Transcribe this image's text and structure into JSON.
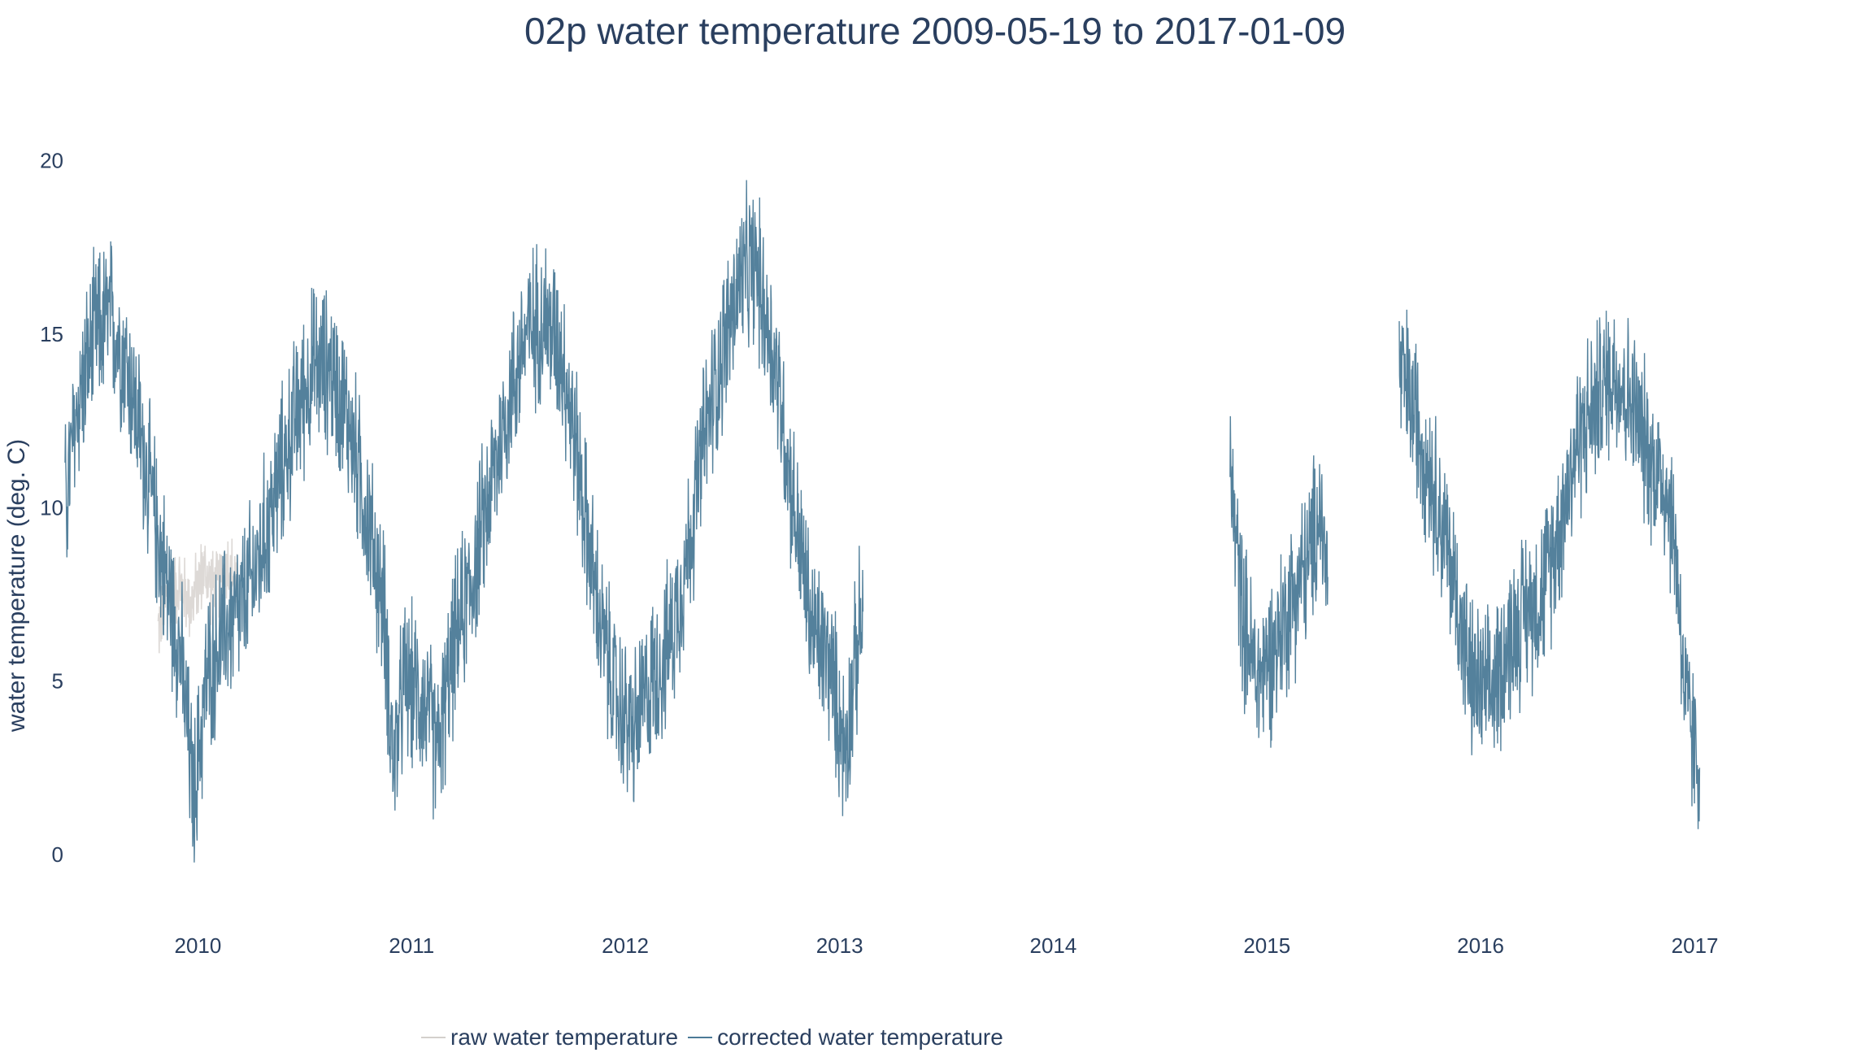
{
  "chart_data": {
    "type": "line",
    "title": "02p water temperature 2009-05-19 to 2017-01-09",
    "xlabel": "",
    "ylabel": "water temperature (deg. C)",
    "x_range": [
      "2009-05-19",
      "2017-07-15"
    ],
    "ylim": [
      -0.8,
      21.0
    ],
    "x_ticks": [
      "2010",
      "2011",
      "2012",
      "2013",
      "2014",
      "2015",
      "2016",
      "2017"
    ],
    "y_ticks": [
      0,
      5,
      10,
      15,
      20
    ],
    "grid": false,
    "legend_position": "bottom",
    "series": [
      {
        "name": "raw water temperature",
        "color": "#d4d0cc",
        "segments": [
          [
            [
              "2009-10-25",
              6.5
            ],
            [
              "2009-11-10",
              7.5
            ],
            [
              "2009-12-01",
              7.8
            ],
            [
              "2009-12-20",
              7.2
            ],
            [
              "2010-01-10",
              8.2
            ],
            [
              "2010-02-01",
              7.6
            ],
            [
              "2010-02-20",
              8.4
            ],
            [
              "2010-03-10",
              7.8
            ]
          ]
        ]
      },
      {
        "name": "corrected water temperature",
        "color": "#4b7a97",
        "segments": [
          [
            [
              "2009-05-19",
              10.0
            ],
            [
              "2009-06-10",
              13.0
            ],
            [
              "2009-07-10",
              15.0
            ],
            [
              "2009-08-05",
              15.5
            ],
            [
              "2009-09-01",
              14.2
            ],
            [
              "2009-10-01",
              11.5
            ],
            [
              "2009-11-01",
              8.5
            ],
            [
              "2009-12-01",
              6.0
            ],
            [
              "2009-12-25",
              1.5
            ],
            [
              "2010-01-15",
              5.0
            ],
            [
              "2010-02-15",
              6.5
            ],
            [
              "2010-03-15",
              7.0
            ],
            [
              "2010-04-15",
              8.5
            ],
            [
              "2010-05-15",
              10.5
            ],
            [
              "2010-06-15",
              12.5
            ],
            [
              "2010-07-15",
              14.0
            ],
            [
              "2010-08-15",
              14.0
            ],
            [
              "2010-09-15",
              12.5
            ],
            [
              "2010-10-15",
              10.0
            ],
            [
              "2010-11-15",
              7.0
            ],
            [
              "2010-12-01",
              2.5
            ],
            [
              "2010-12-20",
              5.0
            ],
            [
              "2011-01-20",
              4.5
            ],
            [
              "2011-02-15",
              3.0
            ],
            [
              "2011-03-15",
              6.0
            ],
            [
              "2011-04-15",
              8.0
            ],
            [
              "2011-05-15",
              10.5
            ],
            [
              "2011-06-15",
              13.0
            ],
            [
              "2011-07-15",
              15.0
            ],
            [
              "2011-08-15",
              15.5
            ],
            [
              "2011-09-15",
              14.5
            ],
            [
              "2011-10-15",
              11.0
            ],
            [
              "2011-11-15",
              7.0
            ],
            [
              "2011-12-15",
              4.5
            ],
            [
              "2012-01-15",
              3.5
            ],
            [
              "2012-02-15",
              5.0
            ],
            [
              "2012-03-15",
              6.0
            ],
            [
              "2012-04-15",
              8.5
            ],
            [
              "2012-05-15",
              12.0
            ],
            [
              "2012-06-15",
              14.5
            ],
            [
              "2012-07-15",
              16.5
            ],
            [
              "2012-08-10",
              17.0
            ],
            [
              "2012-09-15",
              14.0
            ],
            [
              "2012-10-15",
              10.0
            ],
            [
              "2012-11-15",
              6.5
            ],
            [
              "2012-12-15",
              5.5
            ],
            [
              "2013-01-10",
              3.0
            ],
            [
              "2013-02-01",
              6.0
            ],
            [
              "2013-02-10",
              7.0
            ]
          ],
          [
            [
              "2014-10-30",
              11.0
            ],
            [
              "2014-11-20",
              7.0
            ],
            [
              "2014-12-15",
              5.0
            ],
            [
              "2015-01-15",
              6.0
            ],
            [
              "2015-02-15",
              7.5
            ],
            [
              "2015-03-15",
              8.5
            ],
            [
              "2015-04-01",
              10.0
            ],
            [
              "2015-04-15",
              8.0
            ]
          ],
          [
            [
              "2015-08-15",
              14.0
            ],
            [
              "2015-09-15",
              12.5
            ],
            [
              "2015-10-15",
              10.5
            ],
            [
              "2015-11-15",
              8.0
            ],
            [
              "2015-12-15",
              5.0
            ],
            [
              "2016-01-15",
              4.5
            ],
            [
              "2016-02-15",
              6.0
            ],
            [
              "2016-03-15",
              7.0
            ],
            [
              "2016-04-15",
              7.5
            ],
            [
              "2016-05-15",
              9.5
            ],
            [
              "2016-06-15",
              12.0
            ],
            [
              "2016-07-15",
              13.0
            ],
            [
              "2016-08-15",
              14.0
            ],
            [
              "2016-09-15",
              13.0
            ],
            [
              "2016-10-15",
              11.5
            ],
            [
              "2016-11-15",
              10.5
            ],
            [
              "2016-12-01",
              8.5
            ],
            [
              "2016-12-15",
              4.5
            ],
            [
              "2017-01-01",
              3.0
            ],
            [
              "2017-01-09",
              2.5
            ]
          ]
        ]
      }
    ]
  }
}
